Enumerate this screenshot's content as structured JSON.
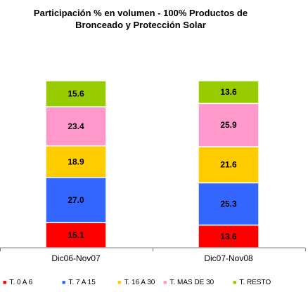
{
  "chart_data": {
    "type": "bar",
    "stacked": true,
    "percent": true,
    "title": "Participación % en volumen - 100% Productos de Bronceado y Protección Solar",
    "title_lines": [
      "Participación % en volumen - 100% Productos de",
      "Bronceado y Protección Solar"
    ],
    "categories": [
      "Dic06-Nov07",
      "Dic07-Nov08"
    ],
    "series": [
      {
        "name": "T. 0 A 6",
        "color": "#ff0000",
        "values": [
          15.1,
          13.6
        ]
      },
      {
        "name": "T. 7 A 15",
        "color": "#3366ff",
        "values": [
          27.0,
          25.3
        ]
      },
      {
        "name": "T. 16 A 30",
        "color": "#ffcc00",
        "values": [
          18.9,
          21.6
        ]
      },
      {
        "name": "T. MAS DE 30",
        "color": "#ff99cc",
        "values": [
          23.4,
          25.9
        ]
      },
      {
        "name": "T. RESTO",
        "color": "#99cc00",
        "values": [
          15.6,
          13.6
        ]
      }
    ],
    "value_labels": [
      [
        "15.1",
        "13.6"
      ],
      [
        "27.0",
        "25.3"
      ],
      [
        "18.9",
        "21.6"
      ],
      [
        "23.4",
        "25.9"
      ],
      [
        "15.6",
        "13.6"
      ]
    ],
    "ylim": [
      0,
      100
    ],
    "grid": false,
    "legend_position": "bottom"
  }
}
